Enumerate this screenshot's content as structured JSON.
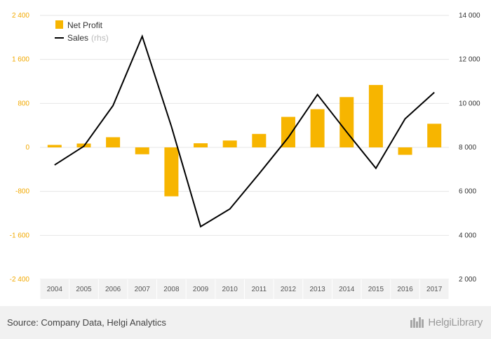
{
  "chart_data": {
    "type": "bar",
    "categories": [
      "2004",
      "2005",
      "2006",
      "2007",
      "2008",
      "2009",
      "2010",
      "2011",
      "2012",
      "2013",
      "2014",
      "2015",
      "2016",
      "2017"
    ],
    "series": [
      {
        "name": "Net Profit",
        "type": "bar",
        "axis": "left",
        "color": "#f7b500",
        "values": [
          45,
          70,
          185,
          -125,
          -890,
          75,
          125,
          245,
          555,
          695,
          915,
          1135,
          -135,
          430
        ]
      },
      {
        "name": "Sales",
        "name_note": "(rhs)",
        "type": "line",
        "axis": "right",
        "color": "#000000",
        "values": [
          7200,
          8050,
          9900,
          13050,
          8950,
          4400,
          5200,
          6800,
          8450,
          10400,
          8700,
          7050,
          9300,
          10500
        ]
      }
    ],
    "y_left": {
      "ylim": [
        -2400,
        2400
      ],
      "ticks": [
        "2 400",
        "1 600",
        "800",
        "0",
        "-800",
        "-1 600",
        "-2 400"
      ]
    },
    "y_right": {
      "ylim": [
        2000,
        14000
      ],
      "ticks": [
        "14 000",
        "12 000",
        "10 000",
        "8 000",
        "6 000",
        "4 000",
        "2 000"
      ]
    },
    "grid": true,
    "legend_position": "top-left"
  },
  "footer": {
    "source": "Source: Company Data, Helgi Analytics",
    "logo_text": "HelgiLibrary"
  }
}
